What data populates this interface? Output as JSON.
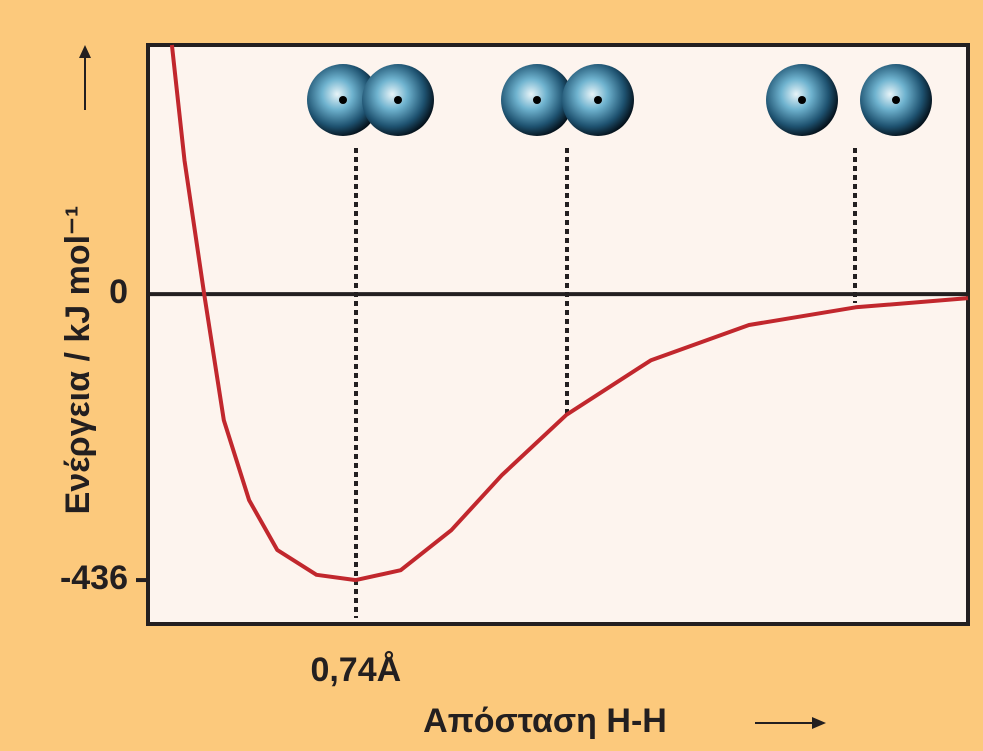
{
  "chart_data": {
    "type": "line",
    "y_label": "Ενέργεια / kJ mol⁻¹",
    "x_label": "Απόσταση H-H",
    "x": [
      0.085,
      0.13,
      0.2,
      0.27,
      0.36,
      0.46,
      0.6,
      0.74,
      0.9,
      1.08,
      1.26,
      1.49,
      1.79,
      2.14,
      2.52,
      2.92
    ],
    "series": [
      {
        "color": "#c1272d",
        "values": [
          380,
          204,
          0,
          -192,
          -314,
          -390,
          -428,
          -436,
          -421,
          -360,
          -276,
          -184,
          -101,
          -47,
          -20,
          -6
        ]
      }
    ],
    "xlim": [
      0,
      2.92
    ],
    "xticks": [
      {
        "value": 0.74,
        "label": "0,74Å"
      }
    ],
    "ylim": [
      -503,
      380
    ],
    "yticks": [
      0,
      -436
    ],
    "grid": false
  }
}
